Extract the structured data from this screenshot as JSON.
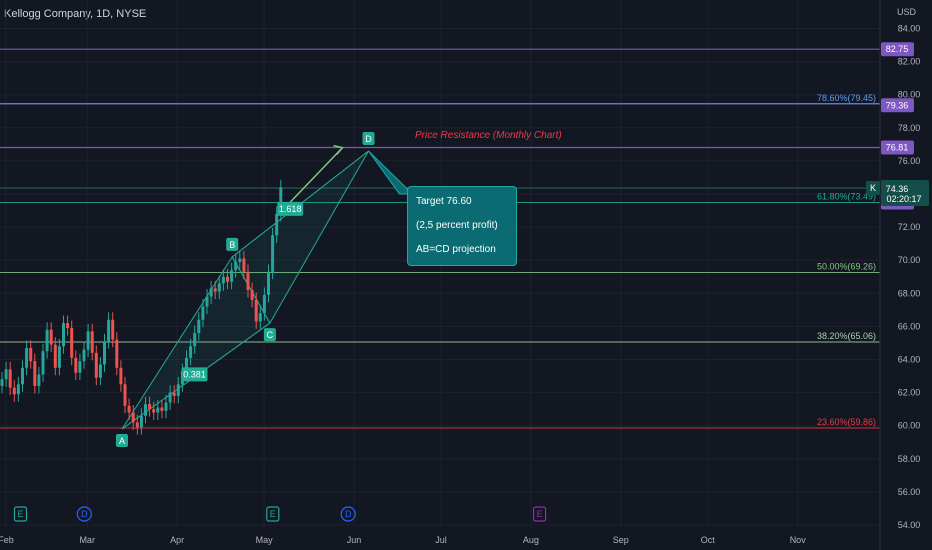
{
  "header": {
    "title": "Kellogg Company, 1D, NYSE",
    "currency": "USD"
  },
  "annotation": {
    "lines": [
      "Target 76.60",
      "(2,5 percent profit)",
      "AB=CD projection"
    ],
    "resistance": "Price Resistance (Monthly Chart)"
  },
  "chart_data": {
    "type": "candlestick",
    "ylim": [
      53.5,
      85.5
    ],
    "y_ticks": [
      54,
      56,
      58,
      60,
      62,
      64,
      66,
      68,
      70,
      72,
      74,
      76,
      78,
      80,
      82,
      84
    ],
    "x_ticks": [
      {
        "label": "Feb",
        "date": "2023-02-01"
      },
      {
        "label": "Mar",
        "date": "2023-03-01"
      },
      {
        "label": "Apr",
        "date": "2023-04-01"
      },
      {
        "label": "May",
        "date": "2023-05-01"
      },
      {
        "label": "Jun",
        "date": "2023-06-01"
      },
      {
        "label": "Jul",
        "date": "2023-07-01"
      },
      {
        "label": "Aug",
        "date": "2023-08-01"
      },
      {
        "label": "Sep",
        "date": "2023-09-01"
      },
      {
        "label": "Oct",
        "date": "2023-10-01"
      },
      {
        "label": "Nov",
        "date": "2023-11-01"
      }
    ],
    "price_labels": [
      {
        "value": "82.75",
        "price": 82.75,
        "color": "#7e57c2"
      },
      {
        "value": "79.36",
        "price": 79.36,
        "color": "#7e57c2"
      },
      {
        "value": "76.81",
        "price": 76.81,
        "color": "#7e57c2"
      },
      {
        "value": "73.49",
        "price": 73.49,
        "color": "#7e57c2"
      }
    ],
    "current": {
      "symbol": "K",
      "price": "74.36",
      "price_num": 74.36,
      "countdown": "02:20:17"
    },
    "horizontal_lines": [
      {
        "price": 82.75,
        "color": "#7e57c2"
      },
      {
        "price": 79.45,
        "color": "#7e57c2"
      },
      {
        "price": 76.81,
        "color": "#7e57c2"
      },
      {
        "price": 74.36,
        "color": "#2a5d57"
      }
    ],
    "fib_levels": [
      {
        "label": "78.60%(79.45)",
        "price": 79.45,
        "color": "#5b9cf6"
      },
      {
        "label": "61.80%(73.49)",
        "price": 73.49,
        "color": "#22ab94"
      },
      {
        "label": "50.00%(69.26)",
        "price": 69.26,
        "color": "#81c784"
      },
      {
        "label": "38.20%(65.06)",
        "price": 65.06,
        "color": "#a5d6a7"
      },
      {
        "label": "23.60%(59.86)",
        "price": 59.86,
        "color": "#f23645"
      }
    ],
    "abcd_points": [
      {
        "label": "A",
        "date": "2023-03-13",
        "price": 59.8
      },
      {
        "label": "B",
        "date": "2023-04-20",
        "price": 70.2
      },
      {
        "label": "C",
        "date": "2023-05-03",
        "price": 66.2
      },
      {
        "label": "D",
        "date": "2023-06-06",
        "price": 76.6
      }
    ],
    "ratio_labels": [
      {
        "label": "0.381",
        "date": "2023-04-07",
        "price": 63.1
      },
      {
        "label": "1.618",
        "date": "2023-05-10",
        "price": 73.1
      }
    ],
    "event_markers": [
      {
        "label": "E",
        "date": "2023-02-06",
        "color": "#26a69a"
      },
      {
        "label": "D",
        "date": "2023-02-28",
        "color": "#2962ff"
      },
      {
        "label": "E",
        "date": "2023-05-04",
        "color": "#26a69a"
      },
      {
        "label": "D",
        "date": "2023-05-30",
        "color": "#2962ff"
      },
      {
        "label": "E",
        "date": "2023-08-04",
        "color": "#9c27b0"
      }
    ],
    "candles_close": [
      62.8,
      63.4,
      62.3,
      61.9,
      62.5,
      63.5,
      64.7,
      63.9,
      62.4,
      63.1,
      64.5,
      65.8,
      64.9,
      63.5,
      64.8,
      66.2,
      65.9,
      64.1,
      63.2,
      63.9,
      64.6,
      65.7,
      64.4,
      62.9,
      63.7,
      65.1,
      66.4,
      65.2,
      63.5,
      62.5,
      61.2,
      60.8,
      60.2,
      59.9,
      60.6,
      61.3,
      61.0,
      60.8,
      61.1,
      60.9,
      61.4,
      62.0,
      61.8,
      62.5,
      63.3,
      64.1,
      64.8,
      65.6,
      66.4,
      67.2,
      67.8,
      68.3,
      68.1,
      68.6,
      69.0,
      68.7,
      69.4,
      69.9,
      70.1,
      69.3,
      68.2,
      67.6,
      66.3,
      66.8,
      67.9,
      69.3,
      71.5,
      72.8,
      74.4
    ]
  }
}
